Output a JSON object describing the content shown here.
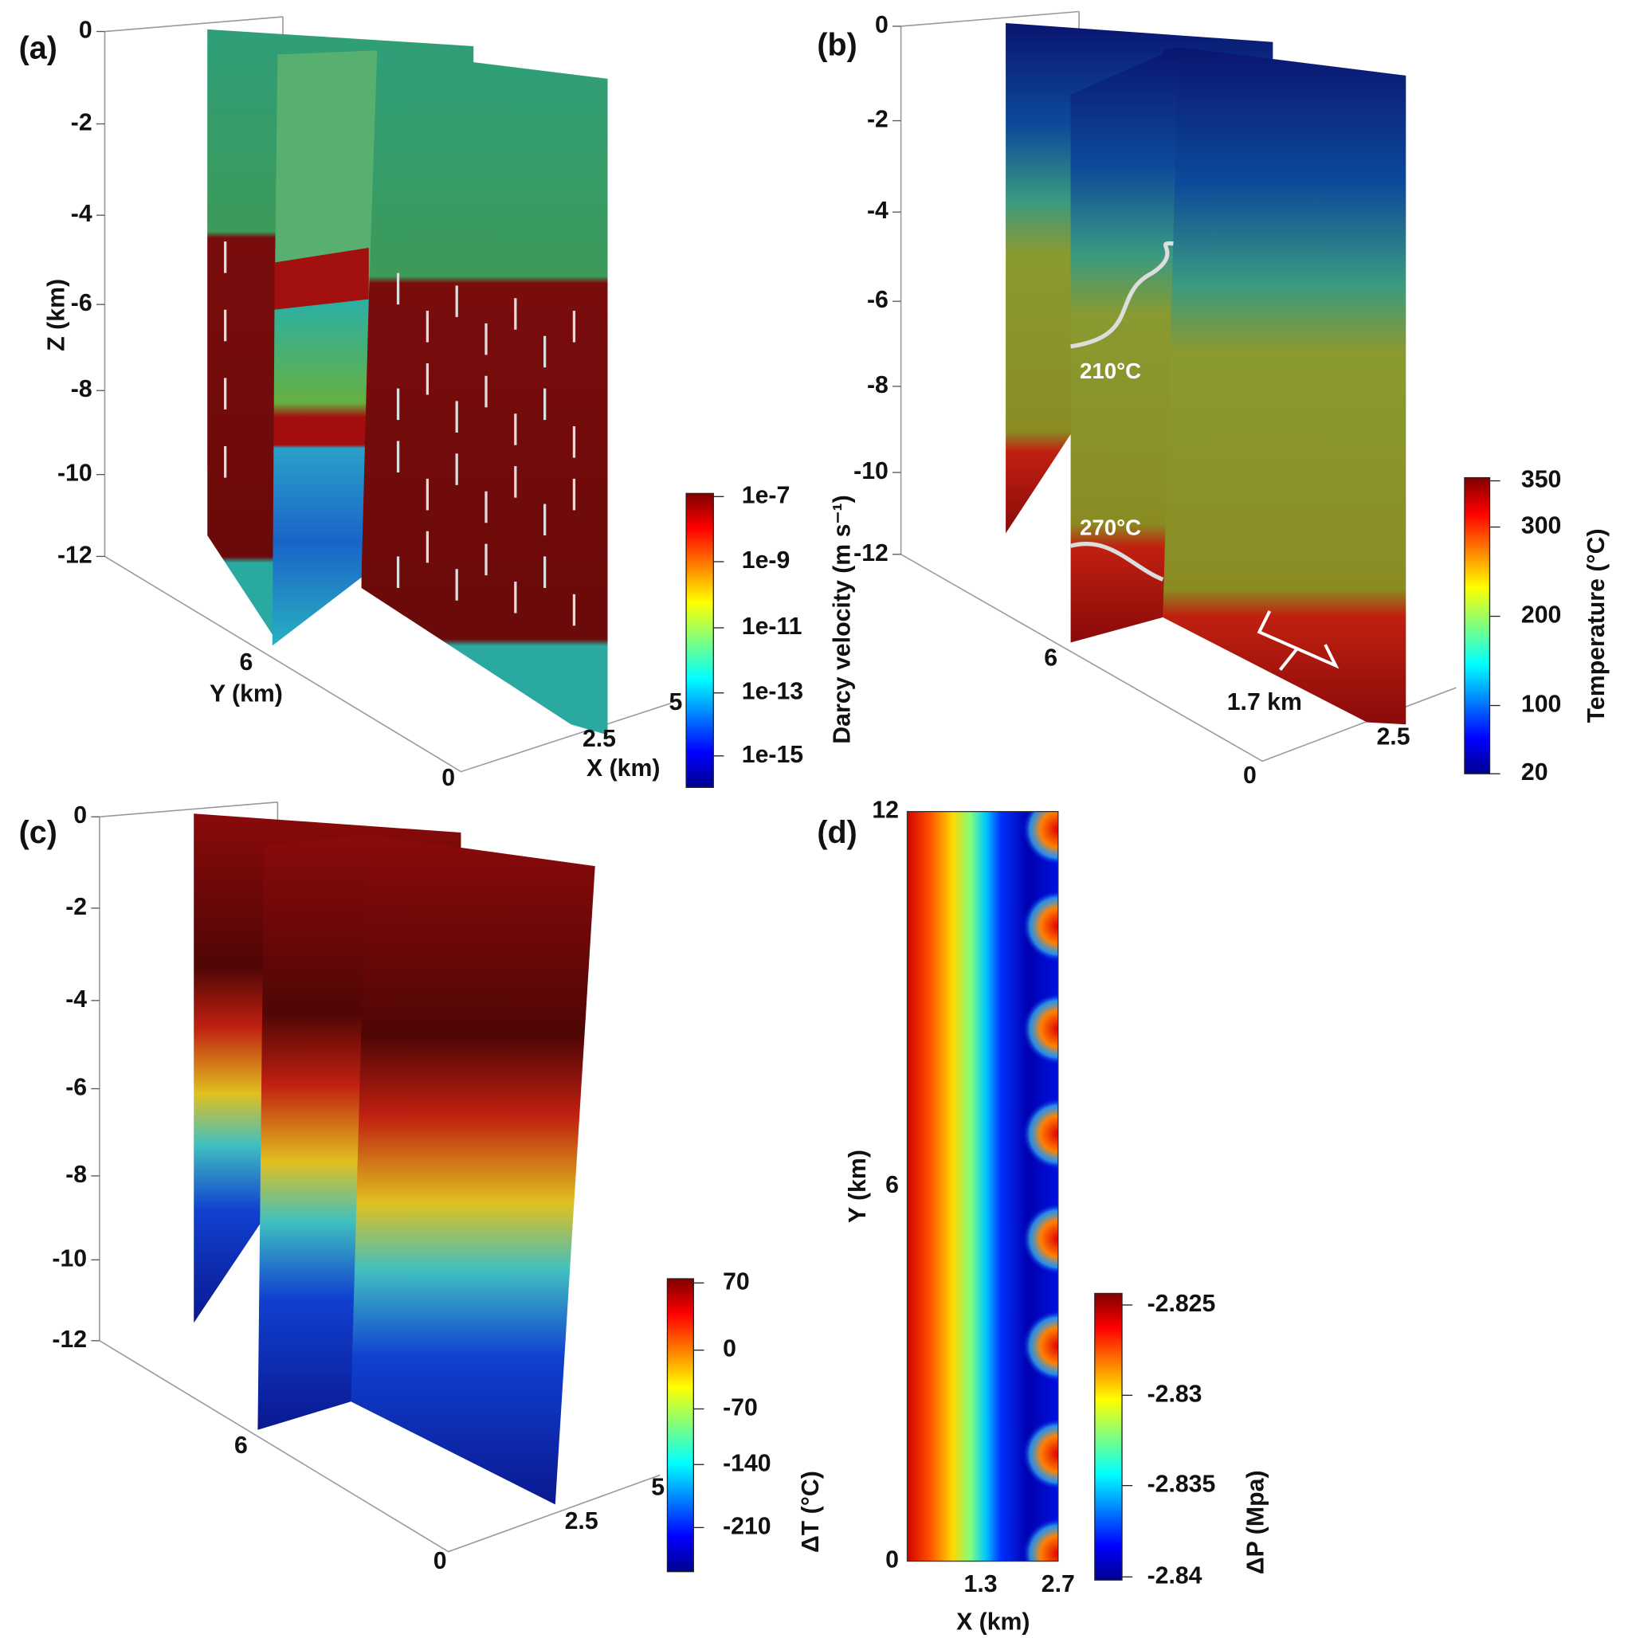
{
  "panels": [
    {
      "label": "(a)",
      "z_axis": {
        "title": "Z (km)",
        "ticks": [
          "0",
          "-2",
          "-4",
          "-6",
          "-8",
          "-10",
          "-12"
        ]
      },
      "y_axis": {
        "title": "Y (km)",
        "ticks": [
          "6",
          "0"
        ]
      },
      "x_axis": {
        "title": "X (km)",
        "ticks": [
          "5",
          "2.5"
        ]
      },
      "colorbar": {
        "title": "Darcy velocity (m s⁻¹)",
        "ticks": [
          "1e-7",
          "1e-9",
          "1e-11",
          "1e-13",
          "1e-15"
        ]
      }
    },
    {
      "label": "(b)",
      "z_axis": {
        "ticks": [
          "0",
          "-2",
          "-4",
          "-6",
          "-8",
          "-10",
          "-12"
        ]
      },
      "y_axis": {
        "ticks": [
          "6",
          "0"
        ]
      },
      "x_axis": {
        "ticks": [
          "2.5"
        ]
      },
      "annotations": [
        "210°C",
        "270°C",
        "1.7 km"
      ],
      "colorbar": {
        "title": "Temperature (°C)",
        "ticks": [
          "350",
          "300",
          "200",
          "100",
          "20"
        ]
      }
    },
    {
      "label": "(c)",
      "z_axis": {
        "ticks": [
          "0",
          "-2",
          "-4",
          "-6",
          "-8",
          "-10",
          "-12"
        ]
      },
      "y_axis": {
        "ticks": [
          "6",
          "0"
        ]
      },
      "x_axis": {
        "ticks": [
          "5",
          "2.5"
        ]
      },
      "colorbar": {
        "title": "ΔT (°C)",
        "ticks": [
          "70",
          "0",
          "-70",
          "-140",
          "-210"
        ]
      }
    },
    {
      "label": "(d)",
      "y_axis": {
        "title": "Y (km)",
        "ticks": [
          "12",
          "6",
          "0"
        ]
      },
      "x_axis": {
        "title": "X (km)",
        "ticks": [
          "1.3",
          "2.7"
        ]
      },
      "colorbar": {
        "title": "ΔP (Mpa)",
        "ticks": [
          "-2.825",
          "-2.83",
          "-2.835",
          "-2.84"
        ]
      }
    }
  ]
}
